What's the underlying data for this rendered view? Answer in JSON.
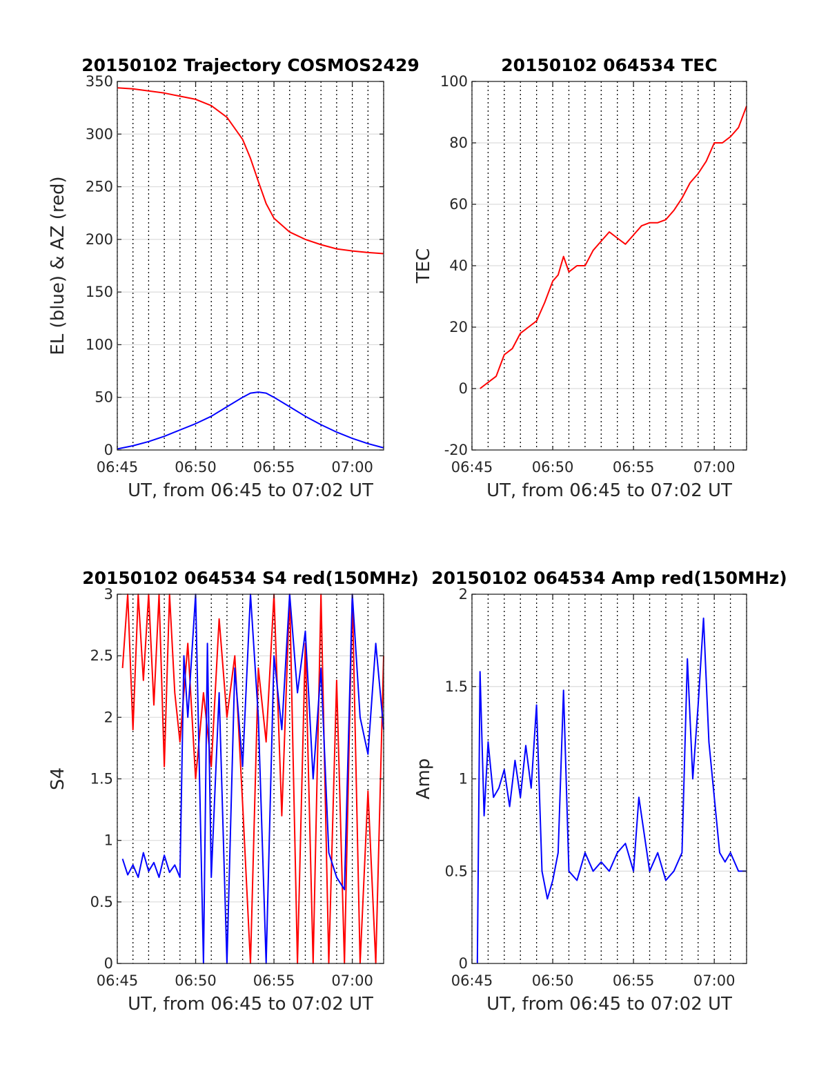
{
  "figure": {
    "background": "#ffffff"
  },
  "colors": {
    "red": "#ff0000",
    "blue": "#0000ff",
    "grid": "#dcdcdc",
    "axis": "#262626",
    "vline": "#000000"
  },
  "chart_data": [
    {
      "id": "trajectory",
      "type": "line",
      "title": "20150102 Trajectory COSMOS2429",
      "xlabel": "UT, from 06:45 to 07:02 UT",
      "ylabel": "EL (blue) & AZ (red)",
      "xlim": [
        "06:45",
        "07:02"
      ],
      "ylim": [
        0,
        350
      ],
      "xticks": [
        "06:45",
        "06:50",
        "06:55",
        "07:00"
      ],
      "yticks": [
        0,
        50,
        100,
        150,
        200,
        250,
        300,
        350
      ],
      "grid": true,
      "vertical_dotted_lines": [
        "06:46",
        "06:47",
        "06:48",
        "06:49",
        "06:51",
        "06:52",
        "06:53",
        "06:54",
        "06:56",
        "06:57",
        "06:58",
        "06:59",
        "07:01",
        "07:02"
      ],
      "series": [
        {
          "color": "#ff0000",
          "x": [
            "06:45",
            "06:46",
            "06:47",
            "06:48",
            "06:49",
            "06:50",
            "06:51",
            "06:52",
            "06:53",
            "06:53:30",
            "06:54",
            "06:54:30",
            "06:55",
            "06:56",
            "06:57",
            "06:58",
            "06:59",
            "07:00",
            "07:01",
            "07:02"
          ],
          "values": [
            344,
            343,
            341,
            339,
            336,
            333,
            327,
            316,
            295,
            277,
            255,
            234,
            220,
            207,
            200,
            195,
            191,
            189,
            187.5,
            186.5
          ]
        },
        {
          "color": "#0000ff",
          "x": [
            "06:45",
            "06:46",
            "06:47",
            "06:48",
            "06:49",
            "06:50",
            "06:51",
            "06:52",
            "06:53",
            "06:53:30",
            "06:54",
            "06:54:30",
            "06:55",
            "06:56",
            "06:57",
            "06:58",
            "06:59",
            "07:00",
            "07:01",
            "07:02"
          ],
          "values": [
            1,
            4,
            8,
            13,
            19,
            25,
            32,
            41,
            50,
            54,
            55,
            54,
            50,
            41,
            32,
            24,
            17,
            11,
            6,
            2
          ]
        }
      ]
    },
    {
      "id": "tec",
      "type": "line",
      "title": "20150102 064534 TEC",
      "xlabel": "UT, from 06:45 to 07:02 UT",
      "ylabel": "TEC",
      "xlim": [
        "06:45",
        "07:02"
      ],
      "ylim": [
        -20,
        100
      ],
      "xticks": [
        "06:45",
        "06:50",
        "06:55",
        "07:00"
      ],
      "yticks": [
        -20,
        0,
        20,
        40,
        60,
        80,
        100
      ],
      "grid": true,
      "vertical_dotted_lines": [
        "06:46",
        "06:47",
        "06:48",
        "06:49",
        "06:51",
        "06:52",
        "06:53",
        "06:54",
        "06:56",
        "06:57",
        "06:58",
        "06:59",
        "07:01",
        "07:02"
      ],
      "series": [
        {
          "color": "#ff0000",
          "x": [
            "06:45:30",
            "06:46",
            "06:46:30",
            "06:47",
            "06:47:30",
            "06:48",
            "06:48:30",
            "06:49",
            "06:49:30",
            "06:50",
            "06:50:20",
            "06:50:40",
            "06:51",
            "06:51:30",
            "06:52",
            "06:52:30",
            "06:53",
            "06:53:30",
            "06:54",
            "06:54:30",
            "06:55",
            "06:55:30",
            "06:56",
            "06:56:30",
            "06:57",
            "06:57:30",
            "06:58",
            "06:58:30",
            "06:59",
            "06:59:30",
            "07:00",
            "07:00:30",
            "07:01",
            "07:01:30",
            "07:02"
          ],
          "values": [
            0,
            2,
            4,
            11,
            13,
            18,
            20,
            22,
            28,
            35,
            37,
            43,
            38,
            40,
            40,
            45,
            48,
            51,
            49,
            47,
            50,
            53,
            54,
            54,
            55,
            58,
            62,
            67,
            70,
            74,
            80,
            80,
            82,
            85,
            92
          ]
        }
      ]
    },
    {
      "id": "s4",
      "type": "line",
      "title": "20150102 064534 S4 red(150MHz)",
      "xlabel": "UT, from 06:45 to 07:02 UT",
      "ylabel": "S4",
      "xlim": [
        "06:45",
        "07:02"
      ],
      "ylim": [
        0,
        3
      ],
      "xticks": [
        "06:45",
        "06:50",
        "06:55",
        "07:00"
      ],
      "yticks": [
        0,
        0.5,
        1,
        1.5,
        2,
        2.5,
        3
      ],
      "grid": true,
      "vertical_dotted_lines": [
        "06:46",
        "06:47",
        "06:48",
        "06:49",
        "06:51",
        "06:52",
        "06:53",
        "06:54",
        "06:56",
        "06:57",
        "06:58",
        "06:59",
        "07:01",
        "07:02"
      ],
      "series": [
        {
          "color": "#ff0000",
          "x": [
            "06:45:20",
            "06:45:40",
            "06:46",
            "06:46:20",
            "06:46:40",
            "06:47",
            "06:47:20",
            "06:47:40",
            "06:48",
            "06:48:20",
            "06:48:40",
            "06:49",
            "06:49:30",
            "06:50",
            "06:50:30",
            "06:51",
            "06:51:30",
            "06:52",
            "06:52:30",
            "06:53",
            "06:53:30",
            "06:54",
            "06:54:30",
            "06:55",
            "06:55:30",
            "06:56",
            "06:56:30",
            "06:57",
            "06:57:30",
            "06:58",
            "06:58:30",
            "06:59",
            "06:59:30",
            "07:00",
            "07:00:30",
            "07:01",
            "07:01:30",
            "07:02"
          ],
          "values": [
            2.4,
            3,
            1.9,
            3,
            2.3,
            3,
            2.1,
            3,
            1.6,
            3,
            2.2,
            1.8,
            2.6,
            1.5,
            2.2,
            1.6,
            2.8,
            2.0,
            2.5,
            1.3,
            0,
            2.4,
            1.8,
            3,
            1.2,
            3,
            0,
            2.6,
            0,
            3,
            0,
            2.3,
            0,
            3,
            0,
            1.4,
            0,
            2.5
          ]
        },
        {
          "color": "#0000ff",
          "x": [
            "06:45:20",
            "06:45:40",
            "06:46",
            "06:46:20",
            "06:46:40",
            "06:47",
            "06:47:20",
            "06:47:40",
            "06:48",
            "06:48:20",
            "06:48:40",
            "06:49",
            "06:49:15",
            "06:49:30",
            "06:50",
            "06:50:30",
            "06:50:45",
            "06:51",
            "06:51:30",
            "06:52",
            "06:52:30",
            "06:53",
            "06:53:30",
            "06:54",
            "06:54:30",
            "06:55",
            "06:55:30",
            "06:56",
            "06:56:30",
            "06:57",
            "06:57:30",
            "06:58",
            "06:58:30",
            "06:59",
            "06:59:30",
            "07:00",
            "07:00:30",
            "07:01",
            "07:01:30",
            "07:02"
          ],
          "values": [
            0.85,
            0.72,
            0.8,
            0.7,
            0.9,
            0.75,
            0.82,
            0.7,
            0.88,
            0.74,
            0.8,
            0.7,
            2.5,
            2.0,
            3,
            0,
            2.6,
            0.7,
            2.2,
            0,
            2.4,
            1.6,
            3,
            2.0,
            0,
            2.5,
            1.9,
            3,
            2.2,
            2.7,
            1.5,
            2.4,
            0.9,
            0.7,
            0.6,
            3,
            2.0,
            1.7,
            2.6,
            1.9
          ]
        }
      ]
    },
    {
      "id": "amp",
      "type": "line",
      "title": "20150102 064534 Amp red(150MHz)",
      "xlabel": "UT, from 06:45 to 07:02 UT",
      "ylabel": "Amp",
      "xlim": [
        "06:45",
        "07:02"
      ],
      "ylim": [
        0,
        2
      ],
      "xticks": [
        "06:45",
        "06:50",
        "06:55",
        "07:00"
      ],
      "yticks": [
        0,
        0.5,
        1,
        1.5,
        2
      ],
      "grid": true,
      "vertical_dotted_lines": [
        "06:46",
        "06:47",
        "06:48",
        "06:49",
        "06:51",
        "06:52",
        "06:53",
        "06:54",
        "06:56",
        "06:57",
        "06:58",
        "06:59",
        "07:01",
        "07:02"
      ],
      "series": [
        {
          "color": "#0000ff",
          "x": [
            "06:45:20",
            "06:45:30",
            "06:45:45",
            "06:46",
            "06:46:20",
            "06:46:40",
            "06:47",
            "06:47:20",
            "06:47:40",
            "06:48",
            "06:48:20",
            "06:48:40",
            "06:49",
            "06:49:20",
            "06:49:40",
            "06:50",
            "06:50:20",
            "06:50:40",
            "06:51",
            "06:51:30",
            "06:52",
            "06:52:30",
            "06:53",
            "06:53:30",
            "06:54",
            "06:54:30",
            "06:55",
            "06:55:20",
            "06:55:40",
            "06:56",
            "06:56:30",
            "06:57",
            "06:57:30",
            "06:58",
            "06:58:20",
            "06:58:40",
            "06:59",
            "06:59:20",
            "06:59:40",
            "07:00",
            "07:00:20",
            "07:00:40",
            "07:01",
            "07:01:30",
            "07:02"
          ],
          "values": [
            0,
            1.58,
            0.8,
            1.2,
            0.9,
            0.95,
            1.05,
            0.85,
            1.1,
            0.9,
            1.18,
            0.95,
            1.4,
            0.5,
            0.35,
            0.45,
            0.6,
            1.48,
            0.5,
            0.45,
            0.6,
            0.5,
            0.55,
            0.5,
            0.6,
            0.65,
            0.5,
            0.9,
            0.7,
            0.5,
            0.6,
            0.45,
            0.5,
            0.6,
            1.65,
            1.0,
            1.4,
            1.87,
            1.2,
            0.9,
            0.6,
            0.55,
            0.6,
            0.5,
            0.5
          ]
        }
      ]
    }
  ]
}
